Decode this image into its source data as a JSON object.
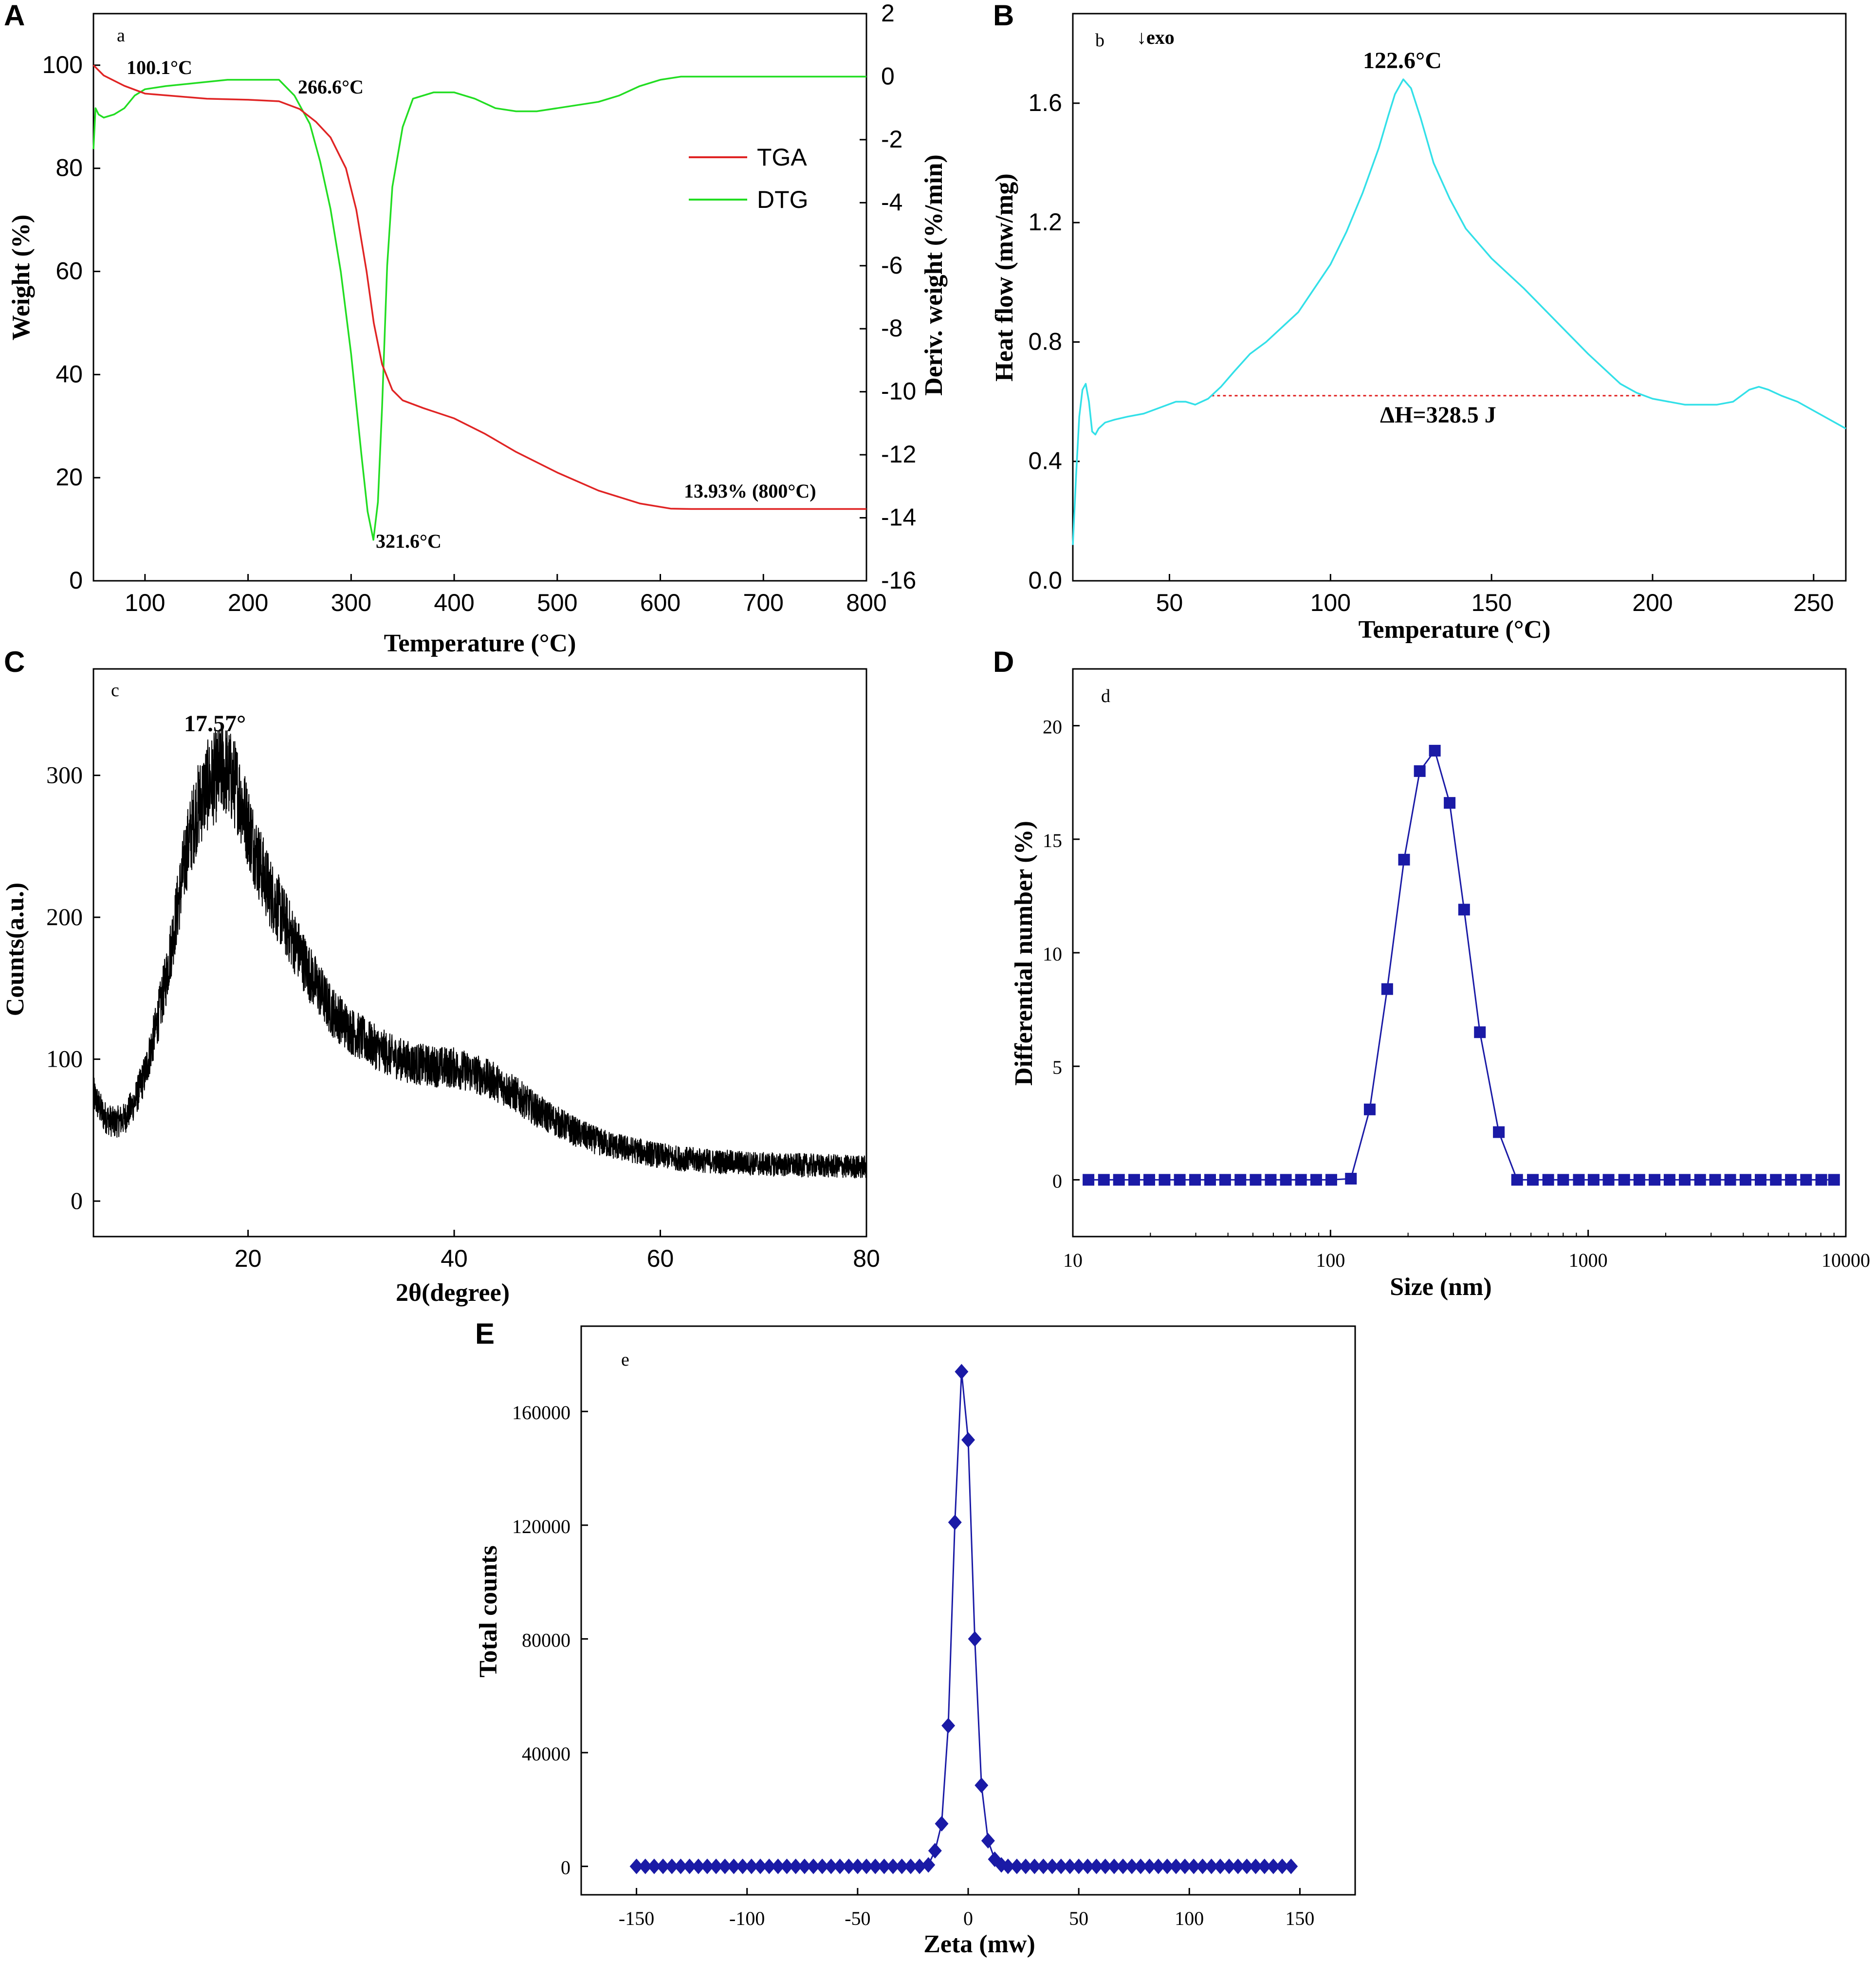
{
  "colors": {
    "tga": "#e02424",
    "dtg": "#22dd22",
    "dsc": "#33e0e8",
    "dsc_baseline": "#e02424",
    "xrd": "#000000",
    "size": "#1a1aa6",
    "zeta": "#1a1aa6"
  },
  "chart_data": [
    {
      "id": "A",
      "type": "line",
      "panel_letter": "A",
      "inner_label": "a",
      "xlabel": "Temperature (°C)",
      "ylabel": "Weight (%)",
      "y2label": "Deriv. weight (%/min)",
      "xlim": [
        50,
        800
      ],
      "ylim": [
        0,
        110
      ],
      "y2lim": [
        -16,
        2
      ],
      "xticks": [
        100,
        200,
        300,
        400,
        500,
        600,
        700,
        800
      ],
      "yticks": [
        0,
        20,
        40,
        60,
        80,
        100
      ],
      "y2ticks": [
        2,
        0,
        -2,
        -4,
        -6,
        -8,
        -10,
        -12,
        -14,
        -16
      ],
      "legend": {
        "placement": "center-right",
        "entries": [
          "TGA",
          "DTG"
        ]
      },
      "series": [
        {
          "name": "TGA",
          "axis": "left",
          "x": [
            50,
            60,
            80,
            100,
            130,
            160,
            200,
            230,
            250,
            266,
            280,
            295,
            305,
            315,
            322,
            330,
            340,
            350,
            370,
            400,
            430,
            460,
            500,
            540,
            580,
            610,
            630,
            700,
            800
          ],
          "y": [
            100,
            98,
            96,
            94.5,
            94,
            93.5,
            93.3,
            93,
            91.5,
            89,
            86,
            80,
            72,
            60,
            50,
            42,
            37,
            35,
            33.5,
            31.5,
            28.5,
            25,
            21,
            17.5,
            15,
            14,
            13.93,
            13.93,
            13.93
          ]
        },
        {
          "name": "DTG",
          "axis": "right",
          "x": [
            50,
            52,
            55,
            60,
            70,
            80,
            90,
            100,
            120,
            150,
            180,
            210,
            230,
            245,
            260,
            270,
            280,
            290,
            300,
            310,
            316,
            321.6,
            326,
            330,
            335,
            340,
            350,
            360,
            380,
            400,
            420,
            440,
            460,
            480,
            500,
            520,
            540,
            560,
            580,
            600,
            620,
            650,
            700,
            750,
            800
          ],
          "y": [
            -2.3,
            -1.0,
            -1.2,
            -1.3,
            -1.2,
            -1.0,
            -0.6,
            -0.4,
            -0.3,
            -0.2,
            -0.1,
            -0.1,
            -0.1,
            -0.6,
            -1.5,
            -2.7,
            -4.2,
            -6.2,
            -8.8,
            -12,
            -13.8,
            -14.7,
            -13.5,
            -10.5,
            -6,
            -3.5,
            -1.6,
            -0.7,
            -0.5,
            -0.5,
            -0.7,
            -1.0,
            -1.1,
            -1.1,
            -1.0,
            -0.9,
            -0.8,
            -0.6,
            -0.3,
            -0.1,
            0,
            0,
            0,
            0,
            0
          ]
        }
      ],
      "annotations": [
        "100.1°C",
        "266.6°C",
        "321.6°C",
        "13.93% (800°C)"
      ]
    },
    {
      "id": "B",
      "type": "line",
      "panel_letter": "B",
      "inner_label": "b",
      "exo_label": "↓exo",
      "xlabel": "Temperature (°C)",
      "ylabel": "Heat flow (mw/mg)",
      "xlim": [
        20,
        260
      ],
      "ylim": [
        0,
        1.9
      ],
      "xticks": [
        50,
        100,
        150,
        200,
        250
      ],
      "yticks": [
        0.0,
        0.4,
        0.8,
        1.2,
        1.6
      ],
      "ytick_labels": [
        "0.0",
        "0.4",
        "0.8",
        "1.2",
        "1.6"
      ],
      "series": [
        {
          "name": "DSC",
          "x": [
            20,
            21,
            22,
            23,
            24,
            25,
            26,
            27,
            28,
            30,
            33,
            37,
            42,
            47,
            52,
            55,
            58,
            62,
            66,
            70,
            75,
            80,
            85,
            90,
            95,
            100,
            105,
            110,
            115,
            118,
            120,
            122.6,
            125,
            128,
            132,
            137,
            142,
            150,
            160,
            170,
            180,
            188,
            190,
            195,
            200,
            205,
            210,
            215,
            220,
            225,
            230,
            233,
            236,
            240,
            245,
            250,
            255,
            260
          ],
          "y": [
            0.12,
            0.35,
            0.55,
            0.64,
            0.66,
            0.6,
            0.5,
            0.49,
            0.51,
            0.53,
            0.54,
            0.55,
            0.56,
            0.58,
            0.6,
            0.6,
            0.59,
            0.61,
            0.65,
            0.7,
            0.76,
            0.8,
            0.85,
            0.9,
            0.98,
            1.06,
            1.17,
            1.3,
            1.45,
            1.56,
            1.63,
            1.68,
            1.65,
            1.55,
            1.4,
            1.28,
            1.18,
            1.08,
            0.98,
            0.87,
            0.76,
            0.68,
            0.66,
            0.63,
            0.61,
            0.6,
            0.59,
            0.59,
            0.59,
            0.6,
            0.64,
            0.65,
            0.64,
            0.62,
            0.6,
            0.57,
            0.54,
            0.51
          ]
        },
        {
          "name": "baseline",
          "x": [
            63,
            197
          ],
          "y": [
            0.62,
            0.62
          ]
        }
      ],
      "annotations": [
        "122.6°C",
        "ΔH=328.5 J"
      ]
    },
    {
      "id": "C",
      "type": "line",
      "panel_letter": "C",
      "inner_label": "c",
      "xlabel": "2θ(degree)",
      "ylabel": "Counts(a.u.)",
      "xlim": [
        5,
        80
      ],
      "ylim": [
        -25,
        375
      ],
      "xticks": [
        20,
        40,
        60,
        80
      ],
      "yticks": [
        0,
        100,
        200,
        300
      ],
      "series": [
        {
          "name": "XRD",
          "x": [
            5,
            6,
            7,
            8,
            9,
            10,
            11,
            12,
            13,
            14,
            15,
            16,
            17,
            17.57,
            18,
            19,
            20,
            21,
            22,
            23,
            24,
            25,
            26,
            27,
            28,
            30,
            32,
            34,
            36,
            38,
            40,
            42,
            44,
            46,
            48,
            50,
            52,
            54,
            56,
            58,
            60,
            62,
            65,
            68,
            70,
            75,
            80
          ],
          "y": [
            75,
            60,
            55,
            58,
            70,
            90,
            120,
            155,
            200,
            245,
            275,
            292,
            300,
            305,
            302,
            290,
            265,
            240,
            220,
            205,
            190,
            175,
            160,
            148,
            135,
            120,
            110,
            102,
            97,
            95,
            94,
            90,
            84,
            75,
            64,
            56,
            48,
            42,
            38,
            35,
            32,
            30,
            28,
            27,
            26,
            25,
            24
          ]
        }
      ],
      "annotations": [
        "17.57°"
      ]
    },
    {
      "id": "D",
      "type": "line",
      "panel_letter": "D",
      "inner_label": "d",
      "xlabel": "Size (nm)",
      "ylabel": "Differential number (%)",
      "xscale": "log",
      "xlim": [
        10,
        10000
      ],
      "ylim": [
        -2.5,
        22.5
      ],
      "xticks": [
        10,
        100,
        1000,
        10000
      ],
      "yticks": [
        0,
        5,
        10,
        15,
        20
      ],
      "series": [
        {
          "name": "Size distribution",
          "x": [
            11.5,
            13.2,
            15.1,
            17.3,
            19.8,
            22.7,
            26.0,
            29.8,
            34.1,
            39.0,
            44.7,
            51.2,
            58.6,
            67.1,
            76.8,
            88.0,
            100.7,
            120,
            142,
            166,
            193,
            222,
            254,
            290,
            330,
            380,
            450,
            530,
            610,
            700,
            800,
            920,
            1050,
            1200,
            1380,
            1580,
            1810,
            2070,
            2370,
            2720,
            3110,
            3560,
            4080,
            4670,
            5350,
            6120,
            7010,
            8030,
            9000
          ],
          "y": [
            0,
            0,
            0,
            0,
            0,
            0,
            0,
            0,
            0,
            0,
            0,
            0,
            0,
            0,
            0,
            0,
            0,
            0.05,
            3.1,
            8.4,
            14.1,
            18.0,
            18.9,
            16.6,
            11.9,
            6.5,
            2.1,
            0,
            0,
            0,
            0,
            0,
            0,
            0,
            0,
            0,
            0,
            0,
            0,
            0,
            0,
            0,
            0,
            0,
            0,
            0,
            0,
            0,
            0
          ]
        }
      ]
    },
    {
      "id": "E",
      "type": "line",
      "panel_letter": "E",
      "inner_label": "e",
      "xlabel": "Zeta (mw)",
      "ylabel": "Total counts",
      "xlim": [
        -175,
        175
      ],
      "ylim": [
        -10000,
        190000
      ],
      "xticks": [
        -150,
        -100,
        -50,
        0,
        50,
        100,
        150
      ],
      "yticks": [
        0,
        40000,
        80000,
        120000,
        160000
      ],
      "series": [
        {
          "name": "Zeta distribution",
          "x": [
            -150,
            -146,
            -142,
            -138,
            -134,
            -130,
            -126,
            -122,
            -118,
            -114,
            -110,
            -106,
            -102,
            -98,
            -94,
            -90,
            -86,
            -82,
            -78,
            -74,
            -70,
            -66,
            -62,
            -58,
            -54,
            -50,
            -46,
            -42,
            -38,
            -34,
            -30,
            -26,
            -22,
            -18,
            -15,
            -12,
            -9,
            -6,
            -3,
            0,
            3,
            6,
            9,
            12,
            15,
            18,
            22,
            26,
            30,
            34,
            38,
            42,
            46,
            50,
            54,
            58,
            62,
            66,
            70,
            74,
            78,
            82,
            86,
            90,
            94,
            98,
            102,
            106,
            110,
            114,
            118,
            122,
            126,
            130,
            134,
            138,
            142,
            146
          ],
          "y": [
            0,
            0,
            0,
            0,
            0,
            0,
            0,
            0,
            0,
            0,
            0,
            0,
            0,
            0,
            0,
            0,
            0,
            0,
            0,
            0,
            0,
            0,
            0,
            0,
            0,
            0,
            0,
            0,
            0,
            0,
            0,
            0,
            0,
            500,
            5500,
            15000,
            49500,
            121000,
            174000,
            150000,
            80000,
            28500,
            9000,
            2500,
            500,
            0,
            0,
            0,
            0,
            0,
            0,
            0,
            0,
            0,
            0,
            0,
            0,
            0,
            0,
            0,
            0,
            0,
            0,
            0,
            0,
            0,
            0,
            0,
            0,
            0,
            0,
            0,
            0,
            0,
            0,
            0,
            0,
            0
          ]
        }
      ]
    }
  ]
}
